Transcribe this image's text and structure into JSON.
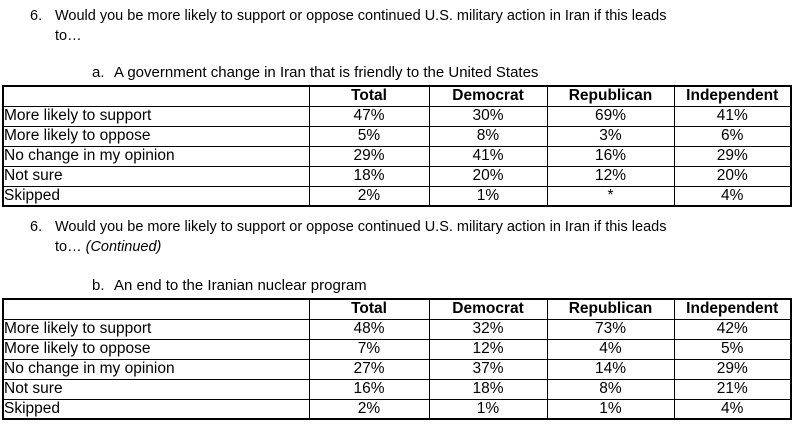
{
  "sections": [
    {
      "question_number": "6.",
      "question_line1": "Would you be more likely to support or oppose continued U.S. military action in Iran if this leads",
      "question_line2": "to…",
      "continued_note": "",
      "sub_label": "a.",
      "sub_title": "A government change in Iran that is friendly to the United States",
      "table": {
        "header": [
          "",
          "Total",
          "Democrat",
          "Republican",
          "Independent"
        ],
        "rows": [
          {
            "label": "More likely to support",
            "total": "47%",
            "democrat": "30%",
            "republican": "69%",
            "independent": "41%"
          },
          {
            "label": "More likely to oppose",
            "total": "5%",
            "democrat": "8%",
            "republican": "3%",
            "independent": "6%"
          },
          {
            "label": "No change in my opinion",
            "total": "29%",
            "democrat": "41%",
            "republican": "16%",
            "independent": "29%"
          },
          {
            "label": "Not sure",
            "total": "18%",
            "democrat": "20%",
            "republican": "12%",
            "independent": "20%"
          },
          {
            "label": "Skipped",
            "total": "2%",
            "democrat": "1%",
            "republican": "*",
            "independent": "4%"
          }
        ]
      }
    },
    {
      "question_number": "6.",
      "question_line1": "Would you be more likely to support or oppose continued U.S. military action in Iran if this leads",
      "question_line2": "to…",
      "continued_note": "(Continued)",
      "sub_label": "b.",
      "sub_title": "An end to the Iranian nuclear program",
      "table": {
        "header": [
          "",
          "Total",
          "Democrat",
          "Republican",
          "Independent"
        ],
        "rows": [
          {
            "label": "More likely to support",
            "total": "48%",
            "democrat": "32%",
            "republican": "73%",
            "independent": "42%"
          },
          {
            "label": "More likely to oppose",
            "total": "7%",
            "democrat": "12%",
            "republican": "4%",
            "independent": "5%"
          },
          {
            "label": "No change in my opinion",
            "total": "27%",
            "democrat": "37%",
            "republican": "14%",
            "independent": "29%"
          },
          {
            "label": "Not sure",
            "total": "16%",
            "democrat": "18%",
            "republican": "8%",
            "independent": "21%"
          },
          {
            "label": "Skipped",
            "total": "2%",
            "democrat": "1%",
            "republican": "1%",
            "independent": "4%"
          }
        ]
      }
    }
  ]
}
